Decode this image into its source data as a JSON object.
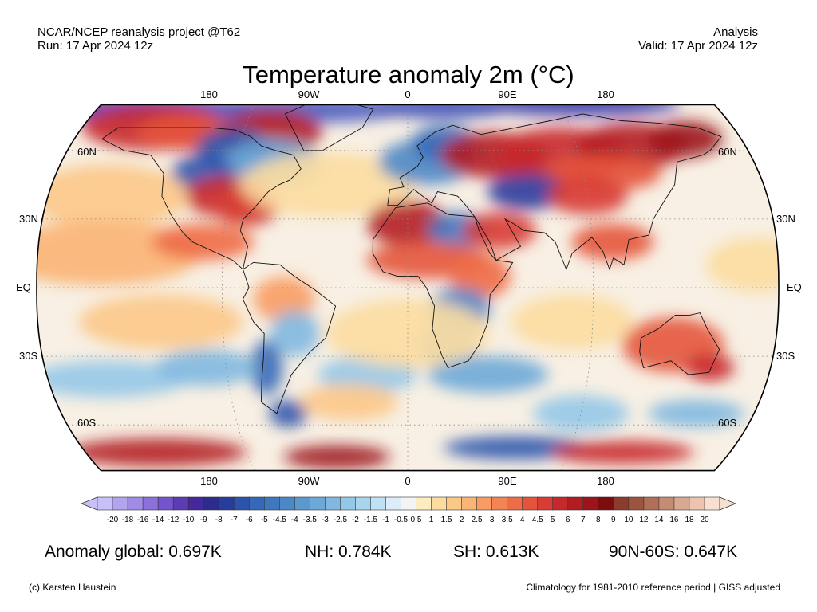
{
  "header": {
    "source": "NCAR/NCEP reanalysis project @T62",
    "run": "Run: 17 Apr 2024 12z",
    "kind": "Analysis",
    "valid": "Valid: 17 Apr 2024 12z"
  },
  "title": "Temperature anomaly 2m (°C)",
  "map": {
    "projection": "Robinson",
    "lon_labels": [
      "180",
      "90W",
      "0",
      "90E",
      "180"
    ],
    "lat_labels": [
      {
        "text": "60N",
        "lat": 60
      },
      {
        "text": "30N",
        "lat": 30
      },
      {
        "text": "EQ",
        "lat": 0
      },
      {
        "text": "30S",
        "lat": -30
      },
      {
        "text": "60S",
        "lat": -60
      }
    ]
  },
  "colorbar": {
    "labels": [
      "-20",
      "-18",
      "-16",
      "-14",
      "-12",
      "-10",
      "-9",
      "-8",
      "-7",
      "-6",
      "-5",
      "-4.5",
      "-4",
      "-3.5",
      "-3",
      "-2.5",
      "-2",
      "-1.5",
      "-1",
      "-0.5",
      "0.5",
      "1",
      "1.5",
      "2",
      "2.5",
      "3",
      "3.5",
      "4",
      "4.5",
      "5",
      "6",
      "7",
      "8",
      "9",
      "10",
      "12",
      "14",
      "16",
      "18",
      "20"
    ],
    "colors": [
      "#c8c0f8",
      "#b4a4f0",
      "#a08ce6",
      "#8c70dc",
      "#7454cc",
      "#5c3cb4",
      "#44289c",
      "#2c2c8c",
      "#283c9c",
      "#2c54ac",
      "#3468b8",
      "#4078c0",
      "#4c88c8",
      "#5c98d0",
      "#6ca8d8",
      "#80b8e0",
      "#94c8e8",
      "#a8d4ee",
      "#c0e0f4",
      "#dcecf8",
      "#f4f4f4",
      "#fcecc0",
      "#fcdca0",
      "#fcc888",
      "#fab474",
      "#f89c64",
      "#f48454",
      "#ee6c46",
      "#e4543c",
      "#d83c34",
      "#c8282c",
      "#b41c24",
      "#9c141c",
      "#7c0c10",
      "#8c3c2c",
      "#9c5440",
      "#b07058",
      "#c48c74",
      "#d8a890",
      "#ecc4b0",
      "#f8e0d0"
    ]
  },
  "stats": {
    "global": "Anomaly global: 0.697K",
    "nh": "NH: 0.784K",
    "sh": "SH: 0.613K",
    "polar": "90N-60S: 0.647K"
  },
  "footer": {
    "credit": "(c) Karsten Haustein",
    "note": "Climatology for 1981-2010 reference period | GISS adjusted"
  }
}
